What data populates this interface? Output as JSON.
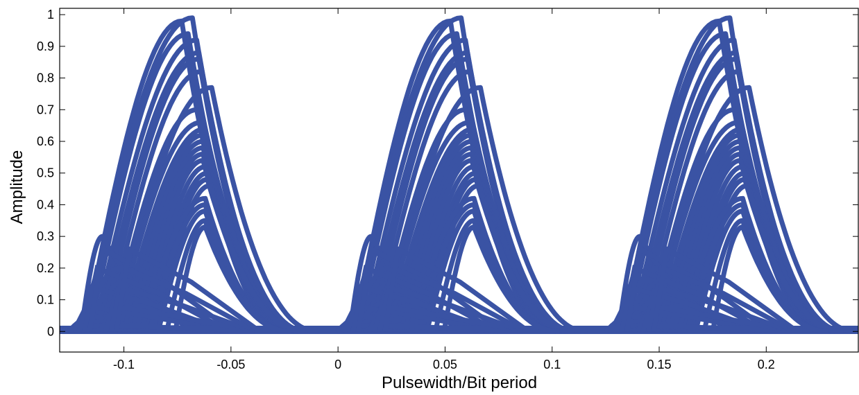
{
  "chart_data": {
    "type": "line",
    "title": "",
    "xlabel": "Pulsewidth/Bit period",
    "ylabel": "Amplitude",
    "xlim": [
      -0.13,
      0.243
    ],
    "ylim": [
      -0.065,
      1.02
    ],
    "xticks": [
      -0.1,
      -0.05,
      0,
      0.05,
      0.1,
      0.15,
      0.2
    ],
    "xtick_labels": [
      "-0.1",
      "-0.05",
      "0",
      "0.05",
      "0.1",
      "0.15",
      "0.2"
    ],
    "yticks": [
      0,
      0.1,
      0.2,
      0.3,
      0.4,
      0.5,
      0.6,
      0.7,
      0.8,
      0.9,
      1
    ],
    "ytick_labels": [
      "0",
      "0.1",
      "0.2",
      "0.3",
      "0.4",
      "0.5",
      "0.6",
      "0.7",
      "0.8",
      "0.9",
      "1"
    ],
    "grid": false,
    "line_color": "#3a53a4",
    "description_of_data": "Eye diagram: overlaid pulse traces repeating with a period of about 0.125 bit periods",
    "period": 0.1255,
    "pulse_starts": [
      -0.13,
      -0.0045,
      0.121
    ],
    "series": [
      {
        "start_offset": 0.012,
        "rise_width": 0.045,
        "peak": 0.98,
        "fall_width": 0.05
      },
      {
        "start_offset": 0.012,
        "rise_width": 0.05,
        "peak": 0.99,
        "fall_width": 0.05
      },
      {
        "start_offset": 0.014,
        "rise_width": 0.046,
        "peak": 0.94,
        "fall_width": 0.05
      },
      {
        "start_offset": 0.016,
        "rise_width": 0.048,
        "peak": 0.92,
        "fall_width": 0.05
      },
      {
        "start_offset": 0.018,
        "rise_width": 0.047,
        "peak": 0.88,
        "fall_width": 0.05
      },
      {
        "start_offset": 0.02,
        "rise_width": 0.045,
        "peak": 0.86,
        "fall_width": 0.05
      },
      {
        "start_offset": 0.022,
        "rise_width": 0.044,
        "peak": 0.82,
        "fall_width": 0.05
      },
      {
        "start_offset": 0.026,
        "rise_width": 0.045,
        "peak": 0.77,
        "fall_width": 0.05
      },
      {
        "start_offset": 0.024,
        "rise_width": 0.04,
        "peak": 0.7,
        "fall_width": 0.045
      },
      {
        "start_offset": 0.026,
        "rise_width": 0.04,
        "peak": 0.66,
        "fall_width": 0.045
      },
      {
        "start_offset": 0.028,
        "rise_width": 0.04,
        "peak": 0.64,
        "fall_width": 0.045
      },
      {
        "start_offset": 0.03,
        "rise_width": 0.037,
        "peak": 0.62,
        "fall_width": 0.045
      },
      {
        "start_offset": 0.032,
        "rise_width": 0.035,
        "peak": 0.6,
        "fall_width": 0.045
      },
      {
        "start_offset": 0.034,
        "rise_width": 0.033,
        "peak": 0.58,
        "fall_width": 0.045
      },
      {
        "start_offset": 0.036,
        "rise_width": 0.031,
        "peak": 0.56,
        "fall_width": 0.045
      },
      {
        "start_offset": 0.038,
        "rise_width": 0.029,
        "peak": 0.54,
        "fall_width": 0.045
      },
      {
        "start_offset": 0.04,
        "rise_width": 0.028,
        "peak": 0.52,
        "fall_width": 0.045
      },
      {
        "start_offset": 0.042,
        "rise_width": 0.027,
        "peak": 0.5,
        "fall_width": 0.045
      },
      {
        "start_offset": 0.044,
        "rise_width": 0.025,
        "peak": 0.48,
        "fall_width": 0.045
      },
      {
        "start_offset": 0.046,
        "rise_width": 0.024,
        "peak": 0.46,
        "fall_width": 0.045
      },
      {
        "start_offset": 0.038,
        "rise_width": 0.03,
        "peak": 0.42,
        "fall_width": 0.04
      },
      {
        "start_offset": 0.042,
        "rise_width": 0.026,
        "peak": 0.4,
        "fall_width": 0.04
      },
      {
        "start_offset": 0.046,
        "rise_width": 0.022,
        "peak": 0.38,
        "fall_width": 0.04
      },
      {
        "start_offset": 0.05,
        "rise_width": 0.018,
        "peak": 0.35,
        "fall_width": 0.04
      },
      {
        "start_offset": 0.054,
        "rise_width": 0.014,
        "peak": 0.33,
        "fall_width": 0.04
      },
      {
        "start_offset": 0.01,
        "rise_width": 0.01,
        "peak": 0.3,
        "fall_width": 0.055
      },
      {
        "start_offset": 0.01,
        "rise_width": 0.014,
        "peak": 0.25,
        "fall_width": 0.055
      },
      {
        "start_offset": 0.01,
        "rise_width": 0.018,
        "peak": 0.2,
        "fall_width": 0.055
      },
      {
        "start_offset": 0.01,
        "rise_width": 0.022,
        "peak": 0.16,
        "fall_width": 0.055
      },
      {
        "start_offset": 0.01,
        "rise_width": 0.026,
        "peak": 0.12,
        "fall_width": 0.055
      },
      {
        "start_offset": 0.01,
        "rise_width": 0.03,
        "peak": 0.08,
        "fall_width": 0.05
      },
      {
        "start_offset": 0.004,
        "rise_width": 0.012,
        "peak": 0.05,
        "fall_width": 0.05
      },
      {
        "start_offset": 0.004,
        "rise_width": 0.008,
        "peak": 0.02,
        "fall_width": 0.05
      }
    ]
  }
}
